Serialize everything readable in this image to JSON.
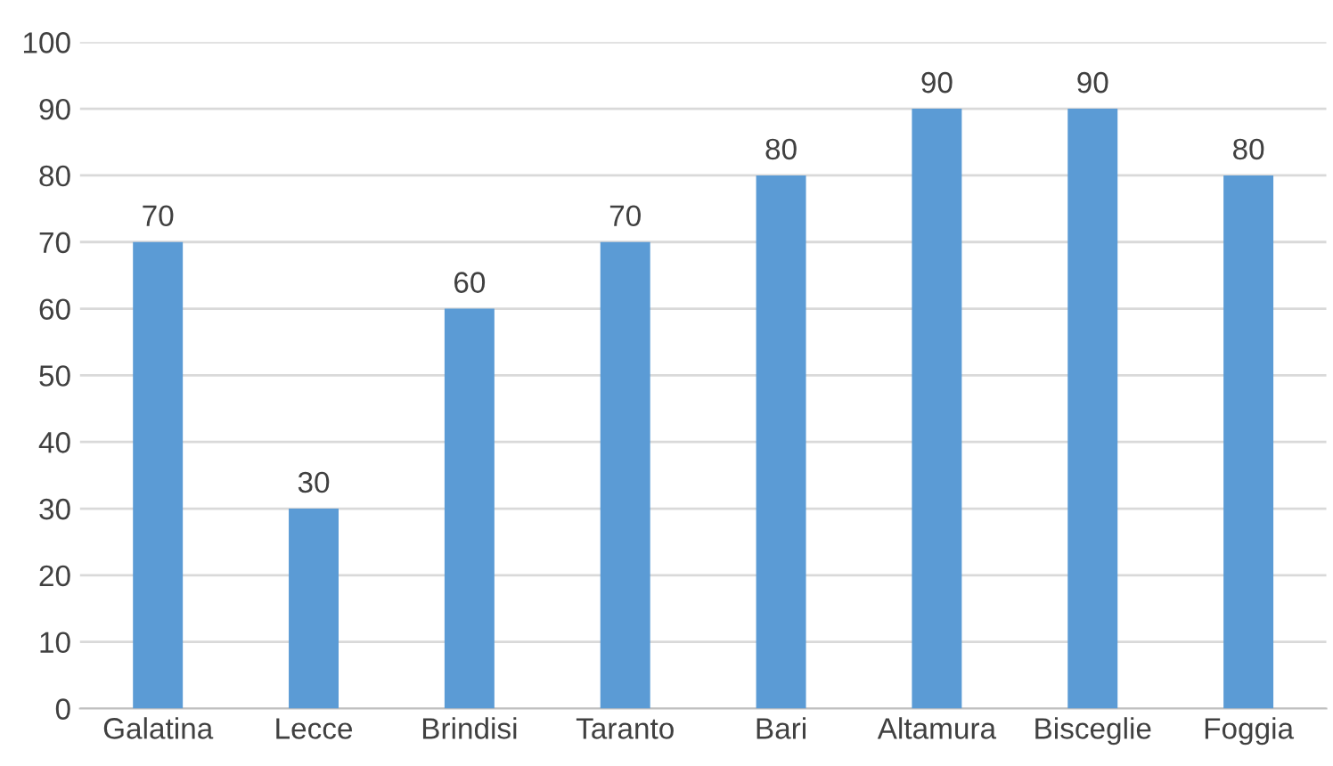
{
  "chart_data": {
    "type": "bar",
    "categories": [
      "Galatina",
      "Lecce",
      "Brindisi",
      "Taranto",
      "Bari",
      "Altamura",
      "Bisceglie",
      "Foggia"
    ],
    "values": [
      70,
      30,
      60,
      70,
      80,
      90,
      90,
      80
    ],
    "color": "#5b9bd5",
    "ylim": [
      0,
      100
    ],
    "yticks": [
      0,
      10,
      20,
      30,
      40,
      50,
      60,
      70,
      80,
      90,
      100
    ],
    "grid": "y",
    "data_labels": true,
    "legend": false
  }
}
